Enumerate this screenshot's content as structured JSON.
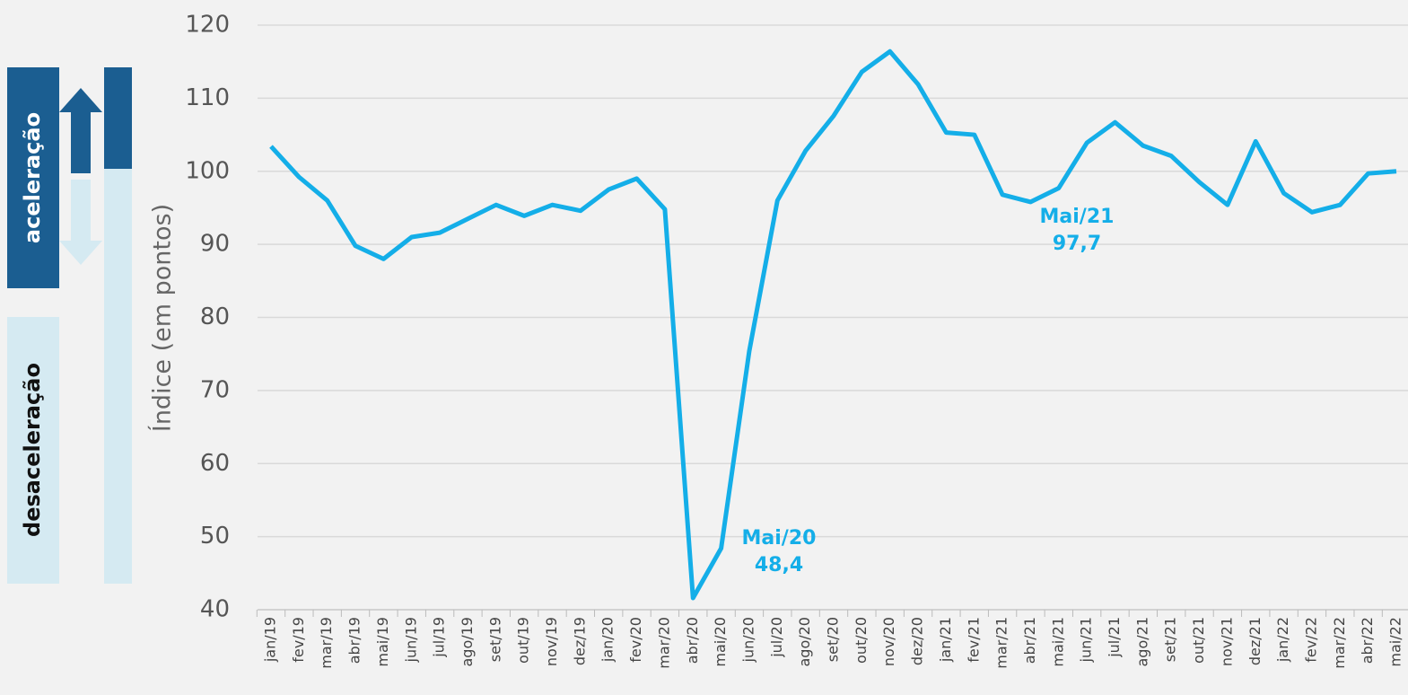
{
  "chart_data": {
    "type": "line",
    "y_label": "Índice (em pontos)",
    "side_labels": [
      "aceleração",
      "desaceleração"
    ],
    "categories": [
      "jan/19",
      "fev/19",
      "mar/19",
      "abr/19",
      "mai/19",
      "jun/19",
      "jul/19",
      "ago/19",
      "set/19",
      "out/19",
      "nov/19",
      "dez/19",
      "jan/20",
      "fev/20",
      "mar/20",
      "abr/20",
      "mai/20",
      "jun/20",
      "jul/20",
      "ago/20",
      "set/20",
      "out/20",
      "nov/20",
      "dez/20",
      "jan/21",
      "fev/21",
      "mar/21",
      "abr/21",
      "mai/21",
      "jun/21",
      "jul/21",
      "ago/21",
      "set/21",
      "out/21",
      "nov/21",
      "dez/21",
      "jan/22",
      "fev/22",
      "mar/22",
      "abr/22",
      "mai/22"
    ],
    "series": [
      {
        "color": "#14aee8",
        "values": [
          103.4,
          99.2,
          96.0,
          89.8,
          88.0,
          91.0,
          91.6,
          93.5,
          95.4,
          93.9,
          95.4,
          94.6,
          97.5,
          99.0,
          94.8,
          41.6,
          48.4,
          75.4,
          96.0,
          102.8,
          107.6,
          113.6,
          116.4,
          111.9,
          105.3,
          105.0,
          96.8,
          95.8,
          97.7,
          103.9,
          106.7,
          103.5,
          102.1,
          98.5,
          95.4,
          104.1,
          97.0,
          94.4,
          95.4,
          99.7,
          100.0
        ]
      }
    ],
    "annotations": [
      {
        "text": [
          "Mai/20",
          "48,4"
        ]
      },
      {
        "text": [
          "Mai/21",
          "97,7"
        ]
      }
    ],
    "ylim": [
      40,
      120
    ],
    "yticks": [
      40,
      50,
      60,
      70,
      80,
      90,
      100,
      110,
      120
    ],
    "grid": true
  }
}
